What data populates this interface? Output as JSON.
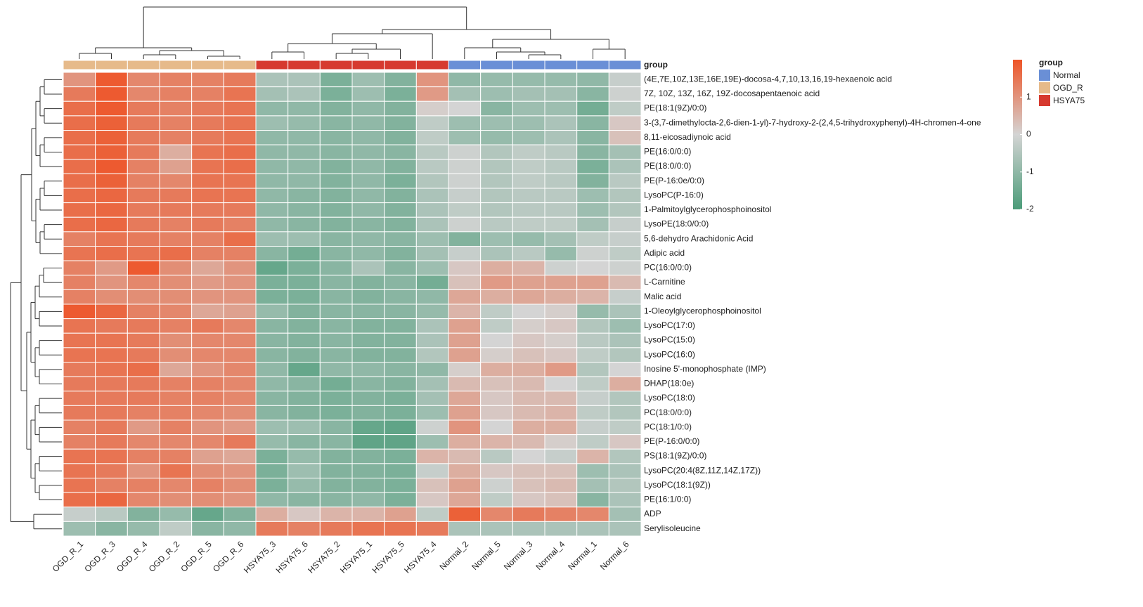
{
  "chart_data": {
    "type": "heatmap",
    "categories": [
      "OGD_R_1",
      "OGD_R_3",
      "OGD_R_4",
      "OGD_R_2",
      "OGD_R_5",
      "OGD_R_6",
      "HSYA75_3",
      "HSYA75_6",
      "HSYA75_2",
      "HSYA75_1",
      "HSYA75_5",
      "HSYA75_4",
      "Normal_2",
      "Normal_5",
      "Normal_3",
      "Normal_4",
      "Normal_1",
      "Normal_6"
    ],
    "rows": [
      "(4E,7E,10Z,13E,16E,19E)-docosa-4,7,10,13,16,19-hexaenoic acid",
      "7Z, 10Z, 13Z, 16Z, 19Z-docosapentaenoic acid",
      "PE(18:1(9Z)/0:0)",
      "3-(3,7-dimethylocta-2,6-dien-1-yl)-7-hydroxy-2-(2,4,5-trihydroxyphenyl)-4H-chromen-4-one",
      "8,11-eicosadiynoic acid",
      "PE(16:0/0:0)",
      "PE(18:0/0:0)",
      "PE(P-16:0e/0:0)",
      "LysoPC(P-16:0)",
      "1-Palmitoylglycerophosphoinositol",
      "LysoPE(18:0/0:0)",
      "5,6-dehydro Arachidonic Acid",
      "Adipic acid",
      "PC(16:0/0:0)",
      "L-Carnitine",
      "Malic acid",
      "1-Oleoylglycerophosphoinositol",
      "LysoPC(17:0)",
      "LysoPC(15:0)",
      "LysoPC(16:0)",
      "Inosine 5'-monophosphate (IMP)",
      "DHAP(18:0e)",
      "LysoPC(18:0)",
      "PC(18:0/0:0)",
      "PC(18:1/0:0)",
      "PE(P-16:0/0:0)",
      "PS(18:1(9Z)/0:0)",
      "LysoPC(20:4(8Z,11Z,14Z,17Z))",
      "LysoPC(18:1(9Z))",
      "PE(16:1/0:0)",
      "ADP",
      "Serylisoleucine"
    ],
    "values": [
      [
        1.0,
        1.9,
        1.2,
        1.3,
        1.3,
        1.4,
        -0.6,
        -0.6,
        -1.3,
        -0.8,
        -1.2,
        1.0,
        -1.0,
        -0.9,
        -0.9,
        -0.9,
        -1.0,
        -0.2
      ],
      [
        1.4,
        1.9,
        1.2,
        1.3,
        1.3,
        1.5,
        -0.7,
        -0.6,
        -1.3,
        -0.8,
        -1.3,
        0.9,
        -0.7,
        -0.8,
        -0.7,
        -0.7,
        -1.1,
        -0.1
      ],
      [
        1.6,
        1.9,
        1.4,
        1.3,
        1.4,
        1.5,
        -1.0,
        -1.0,
        -1.2,
        -1.0,
        -1.2,
        0.1,
        0.0,
        -1.1,
        -0.8,
        -0.8,
        -1.4,
        -0.3
      ],
      [
        1.6,
        1.8,
        1.4,
        1.3,
        1.4,
        1.5,
        -0.8,
        -0.9,
        -1.1,
        -1.0,
        -1.2,
        -0.3,
        -0.8,
        -0.8,
        -0.8,
        -0.6,
        -1.1,
        0.2
      ],
      [
        1.6,
        1.8,
        1.4,
        1.3,
        1.4,
        1.5,
        -1.0,
        -1.0,
        -1.1,
        -1.0,
        -1.2,
        -0.3,
        -0.8,
        -0.9,
        -0.8,
        -0.6,
        -1.1,
        0.3
      ],
      [
        1.6,
        1.8,
        1.4,
        0.6,
        1.5,
        1.6,
        -1.0,
        -1.0,
        -1.1,
        -1.0,
        -1.1,
        -0.4,
        -0.1,
        -0.5,
        -0.3,
        -0.4,
        -1.1,
        -0.7
      ],
      [
        1.6,
        1.9,
        1.3,
        0.8,
        1.5,
        1.6,
        -1.0,
        -1.0,
        -1.2,
        -1.0,
        -1.2,
        -0.4,
        -0.1,
        -0.5,
        -0.3,
        -0.4,
        -1.3,
        -0.6
      ],
      [
        1.6,
        1.8,
        1.3,
        1.2,
        1.5,
        1.5,
        -1.0,
        -1.0,
        -1.2,
        -1.0,
        -1.3,
        -0.5,
        -0.1,
        -0.5,
        -0.3,
        -0.4,
        -1.2,
        -0.4
      ],
      [
        1.6,
        1.7,
        1.4,
        1.4,
        1.5,
        1.5,
        -1.0,
        -1.1,
        -1.2,
        -1.0,
        -1.2,
        -0.6,
        -0.2,
        -0.5,
        -0.4,
        -0.4,
        -0.8,
        -0.5
      ],
      [
        1.6,
        1.7,
        1.4,
        1.4,
        1.4,
        1.4,
        -1.0,
        -1.1,
        -1.2,
        -1.0,
        -1.2,
        -0.6,
        -0.3,
        -0.5,
        -0.4,
        -0.4,
        -0.8,
        -0.5
      ],
      [
        1.6,
        1.7,
        1.4,
        1.3,
        1.4,
        1.3,
        -1.0,
        -1.1,
        -1.2,
        -1.1,
        -1.2,
        -0.6,
        -0.1,
        -0.4,
        -0.3,
        -0.3,
        -0.7,
        -0.2
      ],
      [
        1.3,
        1.5,
        1.4,
        1.3,
        1.3,
        1.6,
        -0.8,
        -0.8,
        -1.1,
        -1.0,
        -1.1,
        -0.8,
        -1.2,
        -0.8,
        -0.9,
        -0.7,
        -0.3,
        -0.2
      ],
      [
        1.5,
        1.6,
        1.5,
        1.6,
        1.3,
        1.3,
        -1.1,
        -1.4,
        -1.1,
        -1.0,
        -1.2,
        -0.7,
        -0.2,
        -0.6,
        -0.4,
        -0.9,
        -0.1,
        -0.3
      ],
      [
        1.3,
        0.9,
        1.9,
        1.1,
        0.7,
        1.0,
        -1.6,
        -1.3,
        -1.1,
        -0.6,
        -1.1,
        -0.8,
        0.2,
        0.6,
        0.5,
        -0.1,
        0.0,
        -0.1
      ],
      [
        1.3,
        1.0,
        1.2,
        1.1,
        0.9,
        1.0,
        -1.3,
        -1.3,
        -1.1,
        -1.2,
        -1.1,
        -1.4,
        0.3,
        0.9,
        0.8,
        0.8,
        0.8,
        0.4
      ],
      [
        1.3,
        1.1,
        1.1,
        1.1,
        1.0,
        1.0,
        -1.3,
        -1.3,
        -1.1,
        -1.2,
        -1.1,
        -1.0,
        0.7,
        0.6,
        0.7,
        0.6,
        0.5,
        -0.2
      ],
      [
        1.9,
        1.7,
        1.3,
        1.2,
        0.7,
        0.8,
        -0.9,
        -1.2,
        -1.1,
        -1.1,
        -1.1,
        -0.9,
        0.5,
        -0.3,
        0.0,
        0.1,
        -0.9,
        -0.6
      ],
      [
        1.5,
        1.4,
        1.4,
        1.3,
        1.4,
        1.2,
        -1.1,
        -1.2,
        -1.1,
        -1.2,
        -1.2,
        -0.6,
        0.8,
        -0.3,
        0.1,
        0.2,
        -0.5,
        -0.8
      ],
      [
        1.5,
        1.5,
        1.4,
        1.1,
        1.2,
        1.2,
        -1.1,
        -1.2,
        -1.1,
        -1.2,
        -1.2,
        -0.6,
        0.8,
        0.0,
        0.2,
        0.1,
        -0.4,
        -0.6
      ],
      [
        1.5,
        1.5,
        1.4,
        1.1,
        1.2,
        1.2,
        -1.1,
        -1.2,
        -1.1,
        -1.2,
        -1.2,
        -0.5,
        0.8,
        0.1,
        0.3,
        0.2,
        -0.3,
        -0.5
      ],
      [
        1.4,
        1.5,
        1.6,
        0.7,
        1.0,
        1.2,
        -1.0,
        -1.6,
        -1.0,
        -1.0,
        -1.1,
        -1.0,
        0.1,
        0.6,
        0.6,
        0.9,
        -0.5,
        0.0
      ],
      [
        1.4,
        1.4,
        1.4,
        1.3,
        1.3,
        1.2,
        -1.0,
        -1.1,
        -1.4,
        -1.1,
        -1.2,
        -0.7,
        0.4,
        0.3,
        0.4,
        0.0,
        -0.3,
        0.6
      ],
      [
        1.4,
        1.4,
        1.4,
        1.3,
        1.3,
        1.2,
        -1.1,
        -1.2,
        -1.3,
        -1.2,
        -1.3,
        -0.7,
        0.7,
        0.2,
        0.4,
        0.4,
        -0.2,
        -0.5
      ],
      [
        1.4,
        1.4,
        1.3,
        1.3,
        1.2,
        1.1,
        -1.1,
        -1.2,
        -1.3,
        -1.2,
        -1.3,
        -0.8,
        0.8,
        0.2,
        0.4,
        0.5,
        -0.3,
        -0.5
      ],
      [
        1.3,
        1.4,
        0.9,
        1.3,
        1.0,
        0.9,
        -0.8,
        -0.8,
        -1.1,
        -1.6,
        -1.7,
        -0.1,
        1.0,
        0.0,
        0.6,
        0.6,
        -0.2,
        -0.3
      ],
      [
        1.3,
        1.4,
        1.2,
        1.2,
        1.2,
        1.4,
        -0.9,
        -1.1,
        -1.1,
        -1.7,
        -1.7,
        -0.8,
        0.6,
        0.5,
        0.4,
        0.1,
        -0.3,
        0.2
      ],
      [
        1.5,
        1.5,
        1.3,
        1.3,
        0.8,
        0.7,
        -1.3,
        -0.9,
        -1.2,
        -1.2,
        -1.3,
        0.5,
        0.4,
        -0.4,
        0.0,
        -0.2,
        0.5,
        -0.5
      ],
      [
        1.5,
        1.4,
        1.0,
        1.5,
        1.1,
        1.0,
        -1.3,
        -0.8,
        -1.2,
        -1.2,
        -1.3,
        -0.2,
        0.6,
        0.2,
        0.3,
        0.3,
        -0.8,
        -0.6
      ],
      [
        1.5,
        1.3,
        1.3,
        1.2,
        1.3,
        1.1,
        -1.3,
        -0.9,
        -1.2,
        -1.2,
        -1.3,
        0.3,
        0.8,
        -0.1,
        0.3,
        0.4,
        -0.7,
        -0.5
      ],
      [
        1.6,
        1.7,
        1.2,
        1.1,
        1.1,
        1.0,
        -1.0,
        -1.1,
        -1.1,
        -1.0,
        -1.3,
        0.2,
        0.7,
        -0.3,
        0.2,
        0.3,
        -1.1,
        -0.6
      ],
      [
        -0.2,
        -0.4,
        -1.2,
        -0.9,
        -1.6,
        -1.2,
        0.6,
        0.2,
        0.5,
        0.5,
        0.8,
        -0.3,
        1.8,
        1.2,
        1.4,
        1.3,
        1.2,
        -0.7
      ],
      [
        -0.8,
        -1.1,
        -0.9,
        -0.3,
        -1.1,
        -1.0,
        1.4,
        1.3,
        1.4,
        1.5,
        1.5,
        1.4,
        -0.6,
        -0.6,
        -0.6,
        -0.6,
        -0.6,
        -0.6
      ]
    ],
    "column_groups": [
      "OGD_R",
      "OGD_R",
      "OGD_R",
      "OGD_R",
      "OGD_R",
      "OGD_R",
      "HSYA75",
      "HSYA75",
      "HSYA75",
      "HSYA75",
      "HSYA75",
      "HSYA75",
      "Normal",
      "Normal",
      "Normal",
      "Normal",
      "Normal",
      "Normal"
    ],
    "annotation_label": "group",
    "legend": {
      "title": "group",
      "entries": [
        "Normal",
        "OGD_R",
        "HSYA75"
      ],
      "colors": [
        "#6a8fd6",
        "#e6ba8a",
        "#d63a2f"
      ]
    },
    "zlim": [
      -2,
      2
    ],
    "zticks": [
      1,
      0,
      -1,
      -2
    ],
    "colorscale": [
      "#4b9c79",
      "#d4d4d4",
      "#ee5427"
    ]
  }
}
